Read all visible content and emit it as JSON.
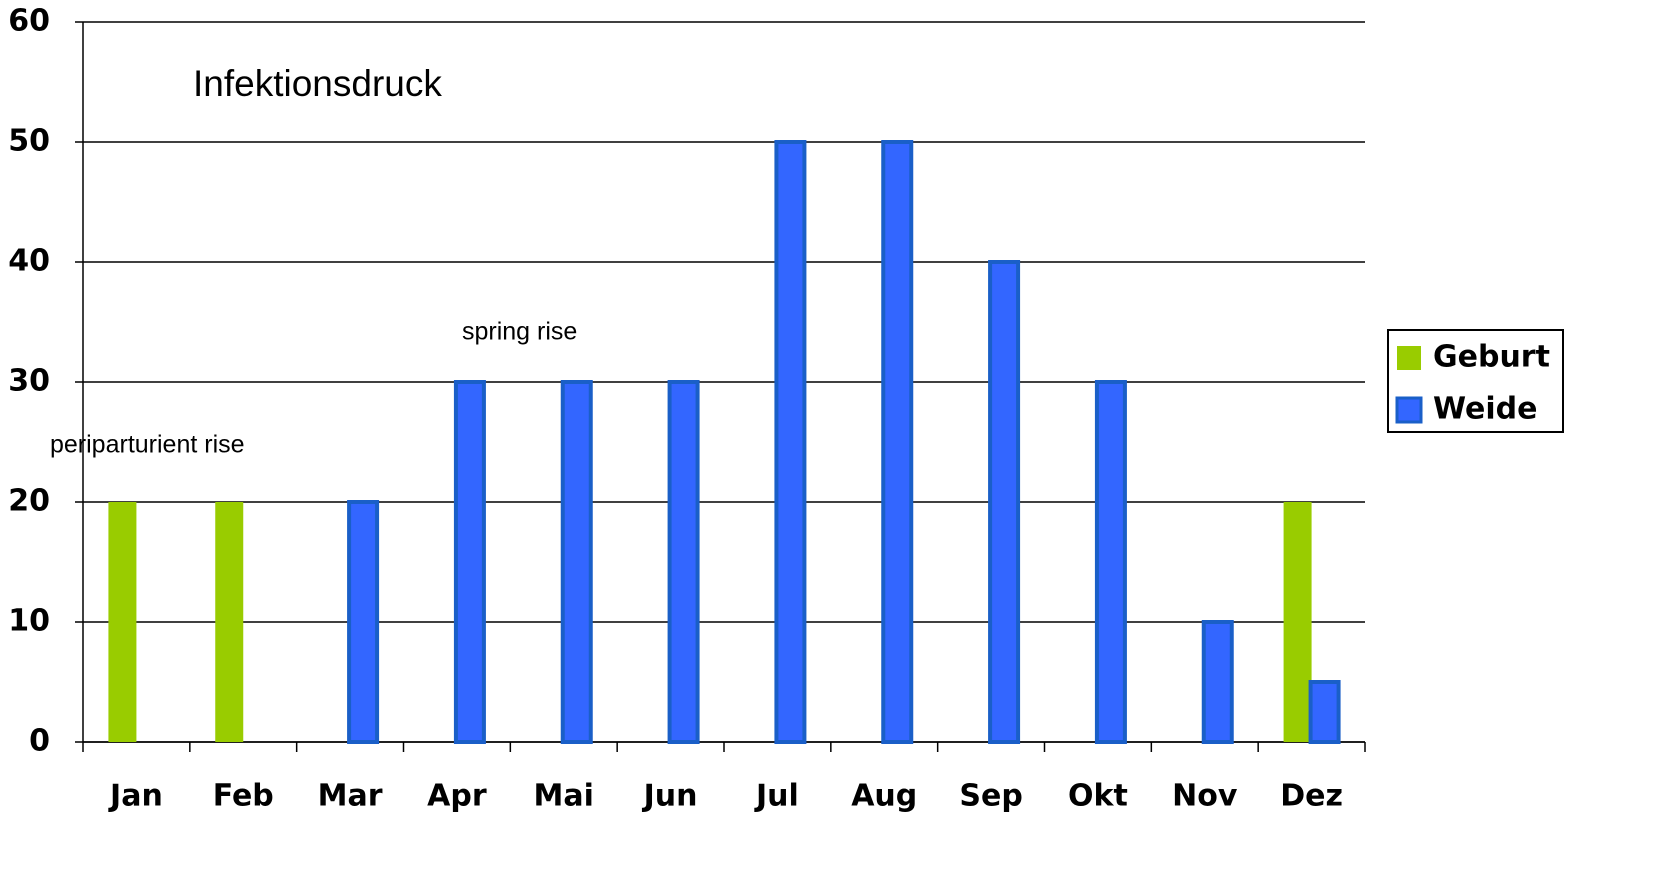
{
  "chart_data": {
    "type": "bar",
    "title": "Infektionsdruck",
    "annotations": [
      "spring rise",
      "periparturient rise"
    ],
    "categories": [
      "Jan",
      "Feb",
      "Mar",
      "Apr",
      "Mai",
      "Jun",
      "Jul",
      "Aug",
      "Sep",
      "Okt",
      "Nov",
      "Dez"
    ],
    "series": [
      {
        "name": "Geburt",
        "color": "#99cc00",
        "values": [
          20,
          20,
          null,
          null,
          null,
          null,
          null,
          null,
          null,
          null,
          null,
          20
        ]
      },
      {
        "name": "Weide",
        "color": "#3366ff",
        "values": [
          null,
          null,
          20,
          30,
          30,
          30,
          50,
          50,
          40,
          30,
          10,
          5
        ]
      }
    ],
    "ylim": [
      0,
      60
    ],
    "yticks": [
      0,
      10,
      20,
      30,
      40,
      50,
      60
    ],
    "grid": true,
    "legend": "right"
  }
}
